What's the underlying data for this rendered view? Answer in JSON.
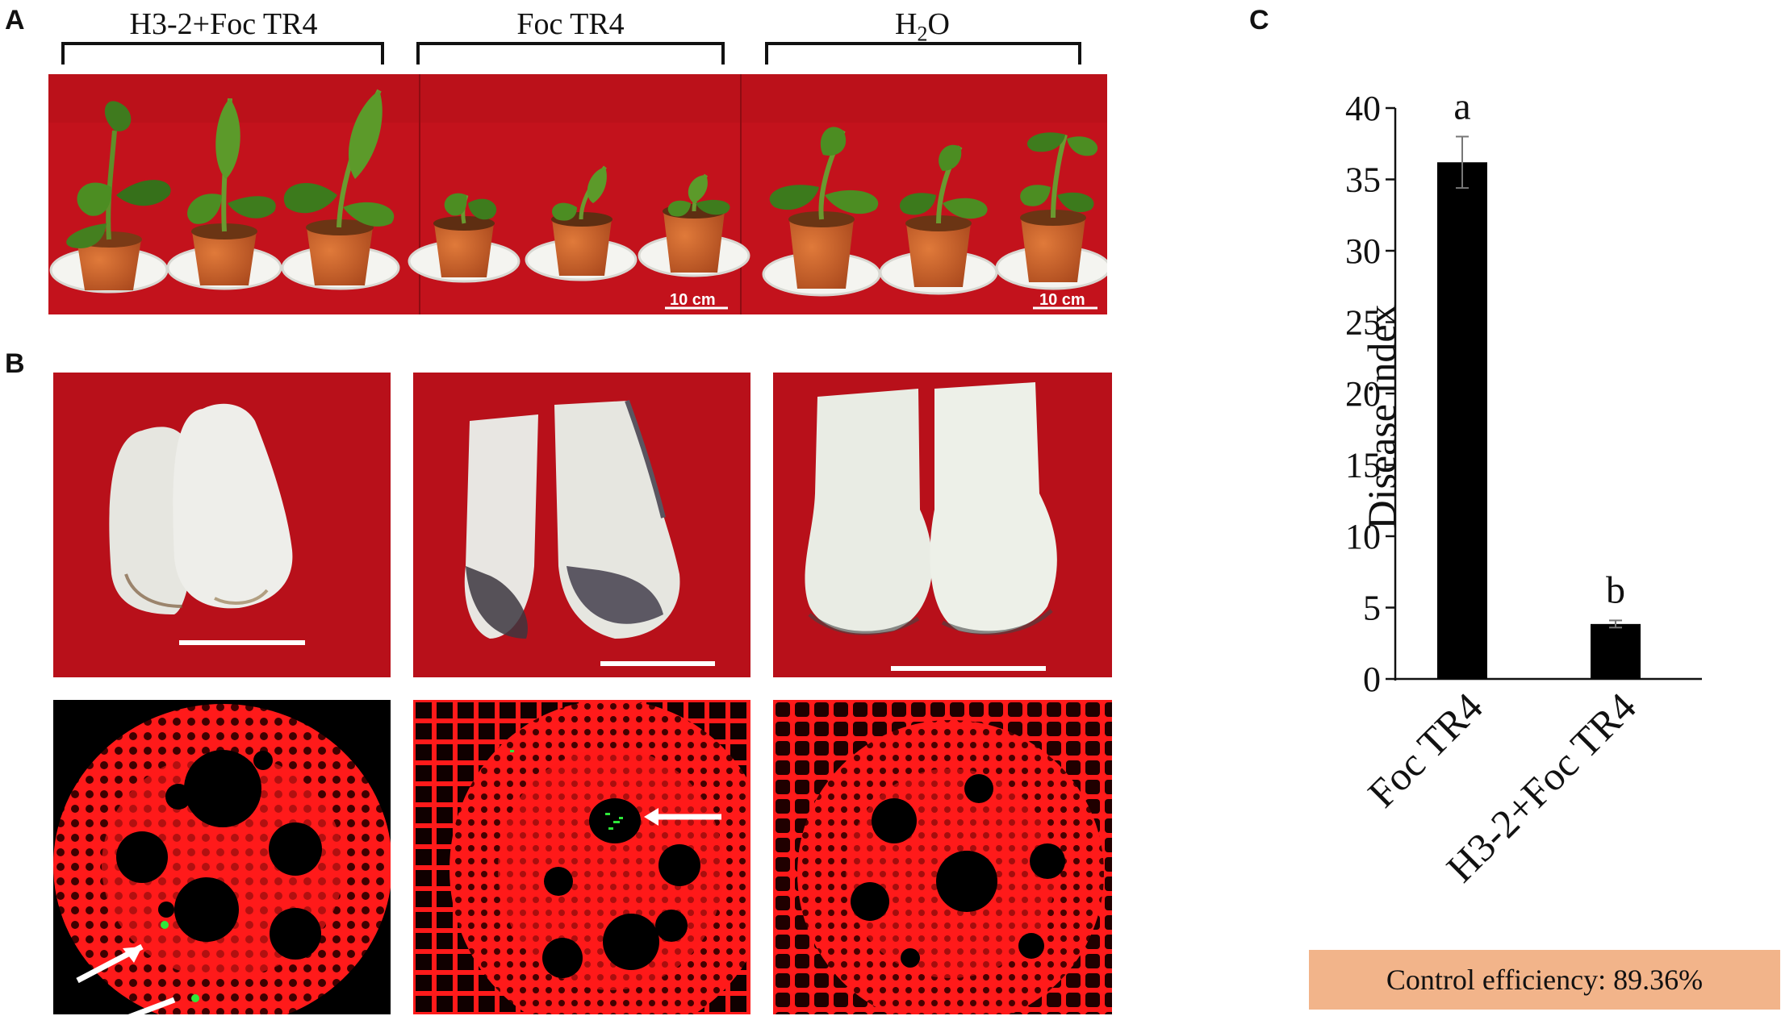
{
  "panels": {
    "a": "A",
    "b": "B",
    "c": "C"
  },
  "groups": [
    {
      "label": "H3-2+Foc TR4"
    },
    {
      "label": "Foc TR4"
    },
    {
      "label_main": "H",
      "label_sub": "2",
      "label_end": "O"
    }
  ],
  "scale_bar_label": "10 cm",
  "colors": {
    "photo_background": "#c3121c",
    "micro_tissue": "#ff1a1a",
    "gfp_signal": "#2ee83a",
    "bar": "#000000",
    "efficiency_box": "#f2b48a"
  },
  "chart_data": {
    "type": "bar",
    "categories": [
      "Foc TR4",
      "H3-2+Foc TR4"
    ],
    "values": [
      36.2,
      3.85
    ],
    "errors": [
      1.8,
      0.25
    ],
    "significance": [
      "a",
      "b"
    ],
    "ylabel": "Disease index",
    "ylim": [
      0,
      40
    ],
    "yticks": [
      0,
      5,
      10,
      15,
      20,
      25,
      30,
      35,
      40
    ],
    "grid": false
  },
  "control_efficiency": "Control efficiency: 89.36%"
}
